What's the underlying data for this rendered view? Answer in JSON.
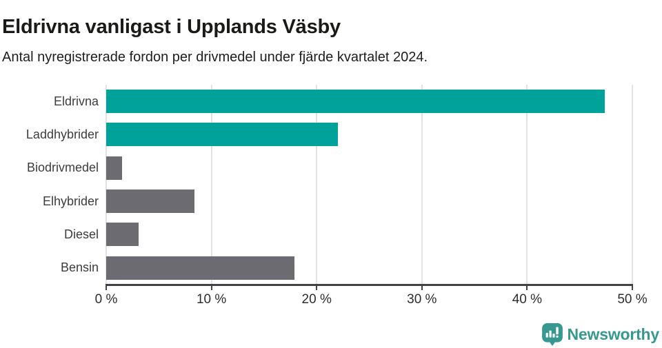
{
  "header": {
    "title": "Eldrivna vanligast i Upplands Väsby",
    "subtitle": "Antal nyregistrerade fordon per drivmedel under fjärde kvartalet 2024."
  },
  "chart_data": {
    "type": "bar",
    "orientation": "horizontal",
    "title": "Eldrivna vanligast i Upplands Väsby",
    "subtitle": "Antal nyregistrerade fordon per drivmedel under fjärde kvartalet 2024.",
    "categories": [
      "Eldrivna",
      "Laddhybrider",
      "Biodrivmedel",
      "Elhybrider",
      "Diesel",
      "Bensin"
    ],
    "values": [
      47.4,
      22.0,
      1.5,
      8.4,
      3.1,
      17.9
    ],
    "unit": "%",
    "xlim": [
      0,
      50
    ],
    "x_tick_values": [
      0,
      10,
      20,
      30,
      40,
      50
    ],
    "x_tick_labels": [
      "0 %",
      "10 %",
      "20 %",
      "30 %",
      "40 %",
      "50 %"
    ],
    "bar_colors": [
      "#00a29a",
      "#00a29a",
      "#6c6b71",
      "#6c6b71",
      "#6c6b71",
      "#6c6b71"
    ],
    "highlight_color": "#00a29a",
    "default_color": "#6c6b71",
    "grid": true,
    "legend": false
  },
  "footer": {
    "brand": "Newsworthy",
    "brand_color": "#37988f",
    "logo_icon": "bar-chart-speech-bubble-icon"
  }
}
